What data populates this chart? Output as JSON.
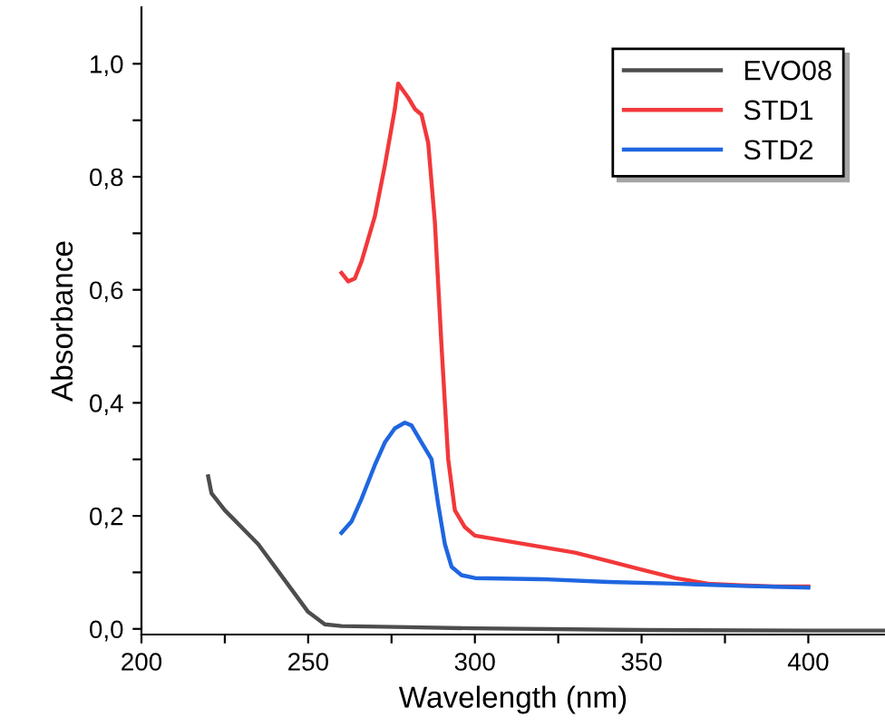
{
  "chart_data": {
    "type": "line",
    "xlabel": "Wavelength (nm)",
    "ylabel": "Absorbance",
    "xlim": [
      200,
      423
    ],
    "ylim": [
      -0.01,
      1.1
    ],
    "xticks": [
      200,
      {
        "value": 225,
        "label": null
      },
      250,
      {
        "value": 275,
        "label": null
      },
      300,
      {
        "value": 325,
        "label": null
      },
      350,
      {
        "value": 375,
        "label": null
      },
      400
    ],
    "yticks": [
      {
        "value": 0,
        "label": "0,0"
      },
      {
        "value": 0.1,
        "label": null
      },
      {
        "value": 0.2,
        "label": "0,2"
      },
      {
        "value": 0.3,
        "label": null
      },
      {
        "value": 0.4,
        "label": "0,4"
      },
      {
        "value": 0.5,
        "label": null
      },
      {
        "value": 0.6,
        "label": "0,6"
      },
      {
        "value": 0.7,
        "label": null
      },
      {
        "value": 0.8,
        "label": "0,8"
      },
      {
        "value": 0.9,
        "label": null
      },
      {
        "value": 1.0,
        "label": "1,0"
      }
    ],
    "grid": false,
    "legend": "top right",
    "series": [
      {
        "name": "EVO08",
        "color": "#4d4d4d",
        "x": [
          220,
          221,
          225,
          230,
          235,
          240,
          245,
          250,
          255,
          260,
          280,
          300,
          350,
          400,
          423
        ],
        "values": [
          0.27,
          0.24,
          0.21,
          0.18,
          0.15,
          0.11,
          0.07,
          0.03,
          0.008,
          0.005,
          0.003,
          0.001,
          -0.002,
          -0.003,
          -0.003
        ]
      },
      {
        "name": "STD1",
        "color": "#f2383a",
        "x": [
          260,
          262,
          264,
          266,
          270,
          273,
          276,
          277,
          280,
          282,
          284,
          286,
          288,
          290,
          292,
          294,
          297,
          300,
          310,
          320,
          330,
          340,
          350,
          360,
          370,
          380,
          390,
          400
        ],
        "values": [
          0.63,
          0.615,
          0.62,
          0.65,
          0.73,
          0.82,
          0.92,
          0.965,
          0.94,
          0.92,
          0.91,
          0.86,
          0.72,
          0.5,
          0.3,
          0.21,
          0.18,
          0.165,
          0.155,
          0.145,
          0.135,
          0.12,
          0.105,
          0.09,
          0.08,
          0.077,
          0.075,
          0.075
        ]
      },
      {
        "name": "STD2",
        "color": "#1f66e0",
        "x": [
          260,
          263,
          266,
          270,
          273,
          276,
          279,
          281,
          284,
          287,
          289,
          291,
          293,
          296,
          300,
          320,
          340,
          360,
          380,
          400
        ],
        "values": [
          0.17,
          0.19,
          0.23,
          0.29,
          0.33,
          0.355,
          0.365,
          0.36,
          0.33,
          0.3,
          0.22,
          0.15,
          0.11,
          0.095,
          0.09,
          0.088,
          0.083,
          0.08,
          0.076,
          0.073
        ]
      }
    ]
  }
}
